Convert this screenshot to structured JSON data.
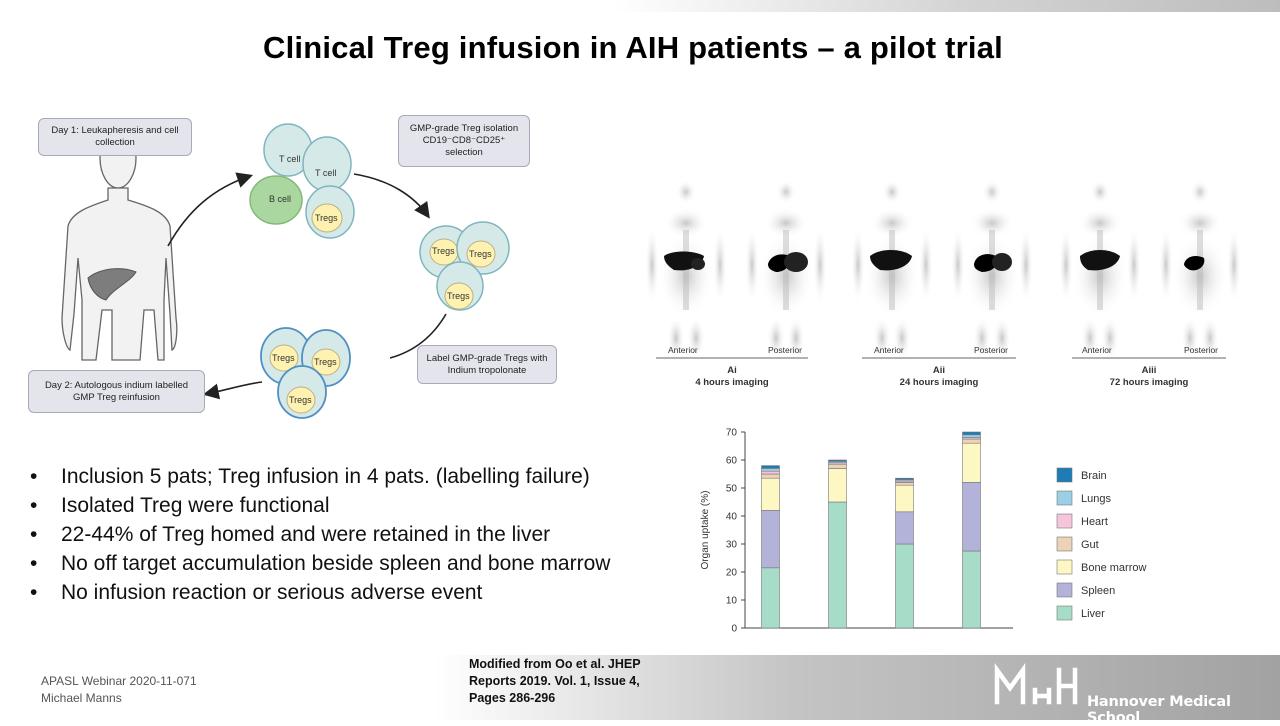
{
  "title": "Clinical Treg infusion in AIH patients – a pilot trial",
  "diagram": {
    "day1": "Day 1: Leukapheresis and cell collection",
    "isolation": "GMP-grade Treg  isolation CD19⁻CD8⁻CD25⁺ selection",
    "label_step": "Label GMP-grade Tregs with Indium tropolonate",
    "day2": "Day 2:  Autologous indium labelled GMP Treg reinfusion",
    "cells": {
      "t_cell": "T cell",
      "b_cell": "B cell",
      "tregs": "Tregs"
    }
  },
  "scans": {
    "view_anterior": "Anterior",
    "view_posterior": "Posterior",
    "panels": [
      {
        "id": "Ai",
        "caption": "4 hours imaging"
      },
      {
        "id": "Aii",
        "caption": "24 hours imaging"
      },
      {
        "id": "Aiii",
        "caption": "72 hours imaging"
      }
    ]
  },
  "bullets": [
    "Inclusion 5 pats; Treg infusion in 4 pats. (labelling failure)",
    "Isolated Treg were functional",
    "22-44% of Treg homed and were retained in the liver",
    "No off target accumulation beside spleen and bone marrow",
    "No infusion reaction or serious adverse event"
  ],
  "chart_data": {
    "type": "bar",
    "stacked": true,
    "ylabel": "Organ uptake (%)",
    "xlabel": "",
    "ylim": [
      0,
      70
    ],
    "yticks": [
      0,
      10,
      20,
      30,
      40,
      50,
      60,
      70
    ],
    "categories": [
      "",
      "",
      "",
      ""
    ],
    "series": [
      {
        "name": "Liver",
        "color": "#a6dcc8",
        "values": [
          21.5,
          45,
          30,
          27.5
        ]
      },
      {
        "name": "Spleen",
        "color": "#b3b2d8",
        "values": [
          20.5,
          0,
          11.5,
          24.5
        ]
      },
      {
        "name": "Bone marrow",
        "color": "#fdf7c4",
        "values": [
          11.5,
          12,
          9.5,
          14
        ]
      },
      {
        "name": "Gut",
        "color": "#ecd2b6",
        "values": [
          1.5,
          1.5,
          1,
          1.5
        ]
      },
      {
        "name": "Heart",
        "color": "#f6c5dc",
        "values": [
          1,
          0.5,
          0.5,
          0.5
        ]
      },
      {
        "name": "Lungs",
        "color": "#9ccfe5",
        "values": [
          1,
          0.5,
          0.5,
          1
        ]
      },
      {
        "name": "Brain",
        "color": "#1d7cb3",
        "values": [
          1,
          0.5,
          0.5,
          1
        ]
      }
    ],
    "legend_position": "right",
    "grid": false
  },
  "footer": {
    "event": "APASL Webinar 2020-11-071",
    "speaker": "Michael Manns",
    "reference": "Modified from Oo et al. JHEP Reports 2019. Vol. 1, Issue 4, Pages 286-296",
    "institution": "Hannover Medical School"
  },
  "colors": {
    "cell_fill": "#d5eae8",
    "cell_stroke": "#7fb5bf",
    "treg_fill": "#fff2b0",
    "bcell_fill": "#a9d79f",
    "box_fill": "#e4e4ec",
    "accent_blue": "#4f8fc2"
  }
}
